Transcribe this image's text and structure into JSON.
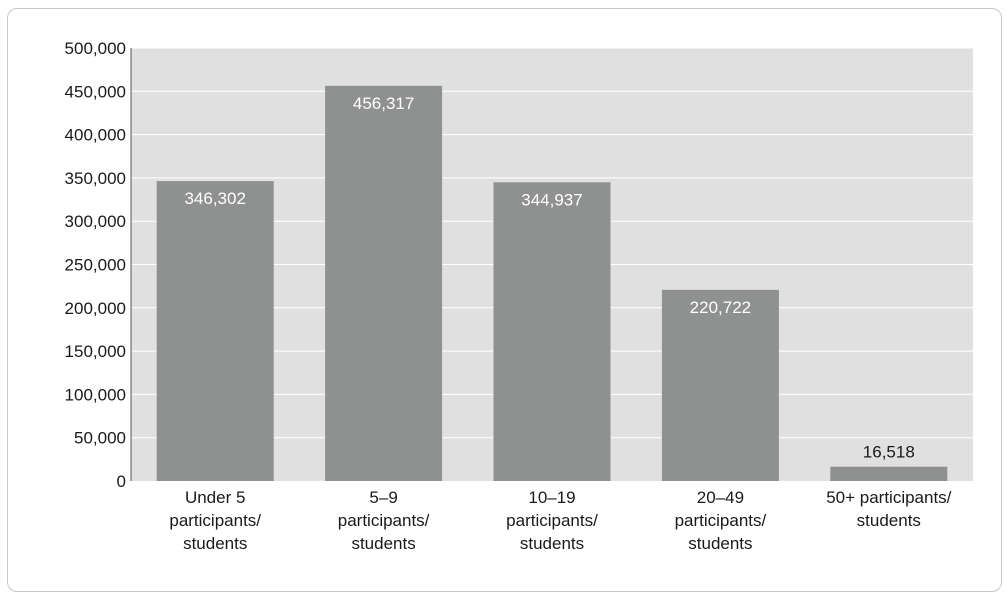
{
  "chart_data": {
    "type": "bar",
    "categories": [
      [
        "Under 5",
        "participants/",
        "students"
      ],
      [
        "5–9",
        "participants/",
        "students"
      ],
      [
        "10–19",
        "participants/",
        "students"
      ],
      [
        "20–49",
        "participants/",
        "students"
      ],
      [
        "50+ participants/",
        "students"
      ]
    ],
    "values": [
      346302,
      456317,
      344937,
      220722,
      16518
    ],
    "data_labels": [
      "346,302",
      "456,317",
      "344,937",
      "220,722",
      "16,518"
    ],
    "yticks": [
      0,
      50000,
      100000,
      150000,
      200000,
      250000,
      300000,
      350000,
      400000,
      450000,
      500000
    ],
    "ytick_labels": [
      "0",
      "50,000",
      "100,000",
      "150,000",
      "200,000",
      "250,000",
      "300,000",
      "350,000",
      "400,000",
      "450,000",
      "500,000"
    ],
    "ylim": [
      0,
      500000
    ],
    "grid": true,
    "legend": "none",
    "colors": {
      "plot_background": "#e0e0e0",
      "bar": "#8f9190",
      "gridline": "#ffffff",
      "label_inside": "#ffffff",
      "label_outside": "#1a1a1a"
    }
  }
}
